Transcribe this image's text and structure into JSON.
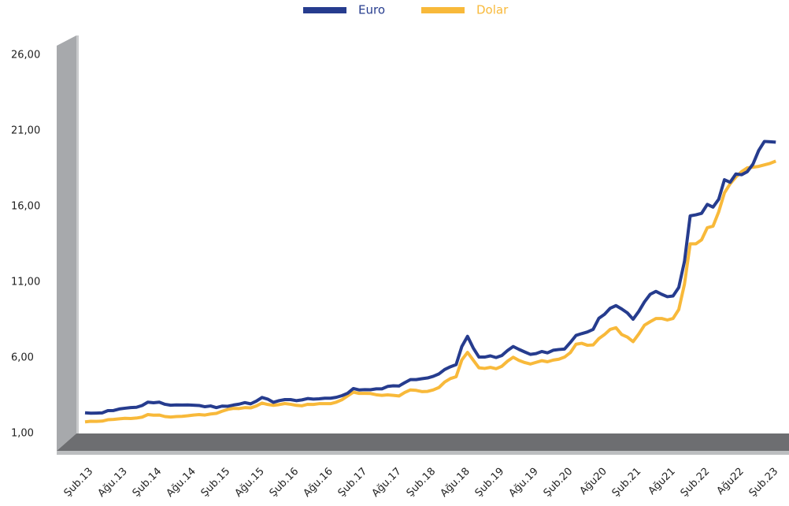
{
  "chart_data": {
    "type": "line",
    "categories": [
      "Şub.13",
      null,
      null,
      null,
      null,
      null,
      "Ağu.13",
      null,
      null,
      null,
      null,
      null,
      "Şub.14",
      null,
      null,
      null,
      null,
      null,
      "Ağu.14",
      null,
      null,
      null,
      null,
      null,
      "Şub.15",
      null,
      null,
      null,
      null,
      null,
      "Ağu.15",
      null,
      null,
      null,
      null,
      null,
      "Şub.16",
      null,
      null,
      null,
      null,
      null,
      "Ağu.16",
      null,
      null,
      null,
      null,
      null,
      "Şub.17",
      null,
      null,
      null,
      null,
      null,
      "Ağu.17",
      null,
      null,
      null,
      null,
      null,
      "Şub.18",
      null,
      null,
      null,
      null,
      null,
      "Ağu.18",
      null,
      null,
      null,
      null,
      null,
      "Şub.19",
      null,
      null,
      null,
      null,
      null,
      "Ağu.19",
      null,
      null,
      null,
      null,
      null,
      "Şub.20",
      null,
      null,
      null,
      null,
      null,
      "Ağu20",
      null,
      null,
      null,
      null,
      null,
      "Şub.21",
      null,
      null,
      null,
      null,
      null,
      "Ağu21",
      null,
      null,
      null,
      null,
      null,
      "Şub.22",
      null,
      null,
      null,
      null,
      null,
      "Ağu22",
      null,
      null,
      null,
      null,
      null,
      "Şub.23",
      null
    ],
    "series": [
      {
        "name": "Euro",
        "color": "#263c8e",
        "values": [
          2.37,
          2.34,
          2.35,
          2.36,
          2.51,
          2.52,
          2.62,
          2.67,
          2.71,
          2.73,
          2.85,
          3.07,
          3.03,
          3.07,
          2.93,
          2.87,
          2.89,
          2.88,
          2.89,
          2.87,
          2.85,
          2.77,
          2.82,
          2.71,
          2.81,
          2.8,
          2.88,
          2.94,
          3.04,
          2.96,
          3.14,
          3.38,
          3.27,
          3.06,
          3.17,
          3.24,
          3.24,
          3.17,
          3.22,
          3.31,
          3.27,
          3.29,
          3.33,
          3.33,
          3.39,
          3.5,
          3.66,
          3.97,
          3.88,
          3.9,
          3.89,
          3.95,
          3.95,
          4.11,
          4.15,
          4.14,
          4.36,
          4.56,
          4.56,
          4.62,
          4.67,
          4.78,
          4.94,
          5.23,
          5.41,
          5.55,
          6.75,
          7.42,
          6.65,
          6.05,
          6.05,
          6.13,
          6.02,
          6.15,
          6.48,
          6.75,
          6.56,
          6.39,
          6.23,
          6.28,
          6.42,
          6.33,
          6.5,
          6.55,
          6.58,
          7.01,
          7.48,
          7.6,
          7.71,
          7.88,
          8.61,
          8.88,
          9.28,
          9.45,
          9.23,
          8.97,
          8.55,
          9.07,
          9.7,
          10.2,
          10.39,
          10.2,
          10.04,
          10.09,
          10.65,
          12.37,
          15.38,
          15.45,
          15.55,
          16.14,
          15.96,
          16.48,
          17.77,
          17.6,
          18.15,
          18.1,
          18.3,
          18.8,
          19.7,
          20.3,
          20.28,
          20.25
        ]
      },
      {
        "name": "Dolar",
        "color": "#f8b93a",
        "values": [
          1.77,
          1.81,
          1.8,
          1.82,
          1.91,
          1.93,
          1.97,
          2.0,
          1.99,
          2.02,
          2.08,
          2.25,
          2.21,
          2.22,
          2.12,
          2.09,
          2.12,
          2.13,
          2.17,
          2.22,
          2.25,
          2.22,
          2.29,
          2.33,
          2.47,
          2.59,
          2.66,
          2.65,
          2.71,
          2.69,
          2.82,
          3.01,
          2.92,
          2.86,
          2.91,
          2.98,
          2.93,
          2.86,
          2.83,
          2.93,
          2.92,
          2.97,
          2.97,
          2.97,
          3.07,
          3.23,
          3.48,
          3.73,
          3.65,
          3.65,
          3.64,
          3.56,
          3.52,
          3.55,
          3.52,
          3.48,
          3.71,
          3.88,
          3.85,
          3.77,
          3.78,
          3.88,
          4.04,
          4.4,
          4.63,
          4.75,
          5.86,
          6.36,
          5.85,
          5.34,
          5.3,
          5.37,
          5.28,
          5.44,
          5.78,
          6.04,
          5.83,
          5.69,
          5.59,
          5.7,
          5.81,
          5.74,
          5.85,
          5.91,
          6.05,
          6.34,
          6.9,
          6.96,
          6.83,
          6.85,
          7.27,
          7.54,
          7.88,
          7.99,
          7.54,
          7.37,
          7.07,
          7.58,
          8.16,
          8.39,
          8.6,
          8.6,
          8.5,
          8.6,
          9.19,
          10.87,
          13.53,
          13.53,
          13.8,
          14.6,
          14.7,
          15.65,
          16.9,
          17.5,
          17.95,
          18.3,
          18.55,
          18.6,
          18.65,
          18.75,
          18.85,
          19.0
        ]
      }
    ],
    "ylim": [
      1,
      26
    ],
    "yticks": [
      {
        "value": 1,
        "label": "1,00"
      },
      {
        "value": 6,
        "label": "6,00"
      },
      {
        "value": 11,
        "label": "11,00"
      },
      {
        "value": 16,
        "label": "16,00"
      },
      {
        "value": 21,
        "label": "21,00"
      },
      {
        "value": 26,
        "label": "26,00"
      }
    ]
  }
}
